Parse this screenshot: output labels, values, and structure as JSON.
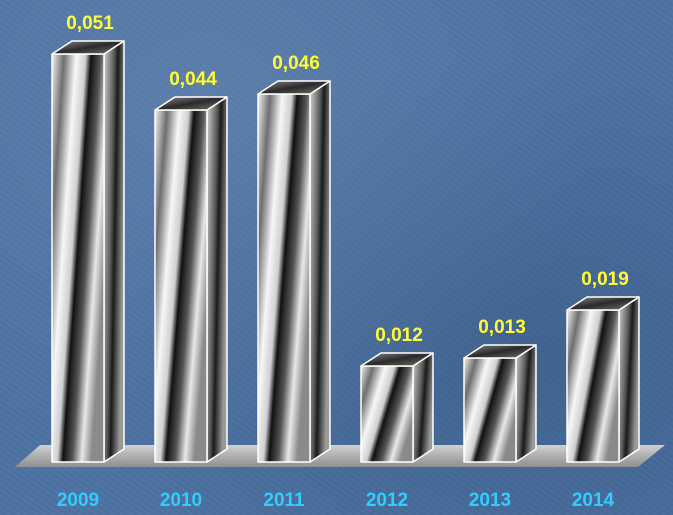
{
  "chart_data": {
    "type": "bar",
    "categories": [
      "2009",
      "2010",
      "2011",
      "2012",
      "2013",
      "2014"
    ],
    "values": [
      0.051,
      0.044,
      0.046,
      0.012,
      0.013,
      0.019
    ],
    "value_labels": [
      "0,051",
      "0,044",
      "0,046",
      "0,012",
      "0,013",
      "0,019"
    ],
    "title": "",
    "xlabel": "",
    "ylabel": "",
    "ylim": [
      0,
      0.055
    ],
    "grid": false,
    "legend": "none",
    "style": "3d-metallic-columns",
    "colors": {
      "value_label": "#ffff33",
      "category_label": "#33ccff",
      "floor": "#bfbfbf",
      "background": "#4d72a2"
    }
  }
}
